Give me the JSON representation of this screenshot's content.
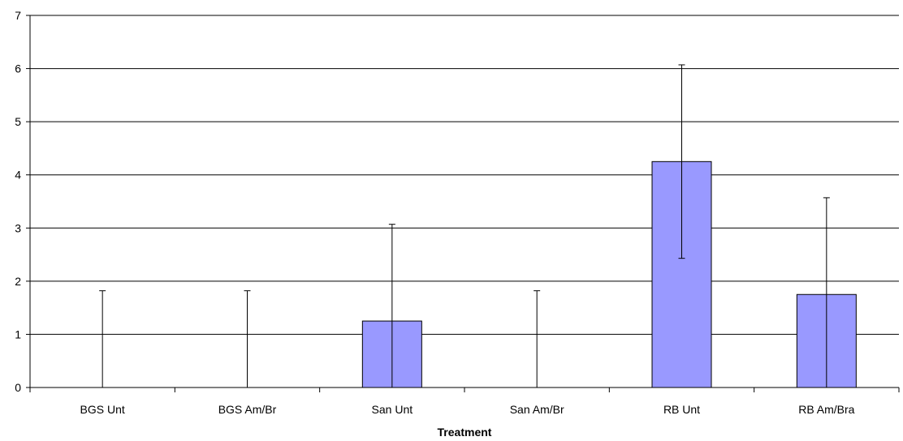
{
  "chart_data": {
    "type": "bar",
    "title": "",
    "xlabel": "Treatment",
    "ylabel": "",
    "categories": [
      "BGS Unt",
      "BGS Am/Br",
      "San Unt",
      "San Am/Br",
      "RB Unt",
      "RB Am/Bra"
    ],
    "series": [
      {
        "values": [
          0,
          0,
          1.25,
          0,
          4.25,
          1.75
        ],
        "error_upper": [
          1.82,
          1.82,
          3.07,
          1.82,
          6.07,
          3.57
        ],
        "error_lower": [
          0,
          0,
          0,
          0,
          2.43,
          0
        ],
        "color": "#9999ff"
      }
    ],
    "ylim": [
      0,
      7
    ],
    "yticks": [
      0,
      1,
      2,
      3,
      4,
      5,
      6,
      7
    ],
    "grid": true,
    "legend": "none"
  }
}
